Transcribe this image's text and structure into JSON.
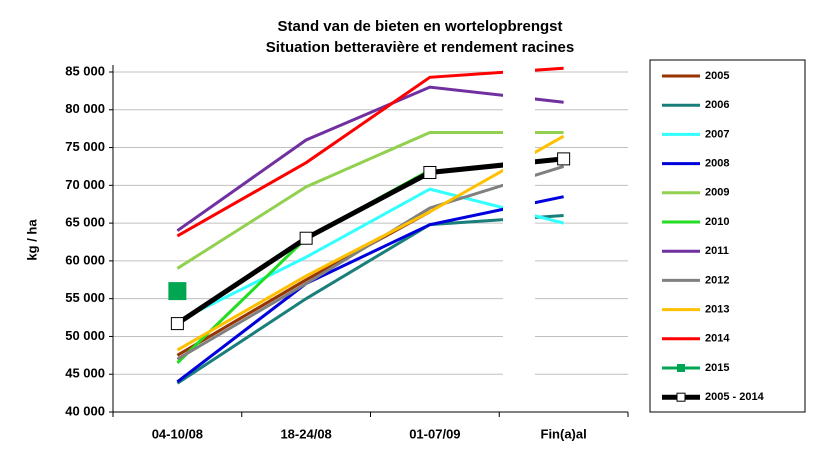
{
  "chart_data": {
    "type": "line",
    "title": "Stand van de bieten en wortelopbrengst",
    "subtitle": "Situation betteravière et rendement racines",
    "y_label": "kg / ha",
    "categories": [
      "04-10/08",
      "18-24/08",
      "01-07/09",
      "Fin(a)al"
    ],
    "ylim": [
      40000,
      85000
    ],
    "yticks": [
      {
        "value": 40000,
        "label": "40 000"
      },
      {
        "value": 45000,
        "label": "45 000"
      },
      {
        "value": 50000,
        "label": "50 000"
      },
      {
        "value": 55000,
        "label": "55 000"
      },
      {
        "value": 60000,
        "label": "60 000"
      },
      {
        "value": 65000,
        "label": "65 000"
      },
      {
        "value": 70000,
        "label": "70 000"
      },
      {
        "value": 75000,
        "label": "75 000"
      },
      {
        "value": 80000,
        "label": "80 000"
      },
      {
        "value": 85000,
        "label": "85 000"
      }
    ],
    "grid": true,
    "legend": "right",
    "series": [
      {
        "name": "2005",
        "color": "#993300",
        "values": [
          47500,
          57500,
          66500,
          null
        ]
      },
      {
        "name": "2006",
        "color": "#1a7f7a",
        "values": [
          43800,
          55000,
          64800,
          66000
        ]
      },
      {
        "name": "2007",
        "color": "#33ffff",
        "values": [
          52000,
          60500,
          69500,
          65000
        ]
      },
      {
        "name": "2008",
        "color": "#0000dd",
        "values": [
          44000,
          57000,
          64800,
          68500
        ]
      },
      {
        "name": "2009",
        "color": "#92d050",
        "values": [
          59000,
          69800,
          77000,
          77000
        ]
      },
      {
        "name": "2010",
        "color": "#22dd22",
        "values": [
          46500,
          63000,
          72000,
          null
        ]
      },
      {
        "name": "2011",
        "color": "#7030a0",
        "values": [
          64000,
          76000,
          83000,
          81000
        ]
      },
      {
        "name": "2012",
        "color": "#808080",
        "values": [
          47000,
          57000,
          67000,
          72500
        ]
      },
      {
        "name": "2013",
        "color": "#ffc000",
        "values": [
          48200,
          58000,
          66500,
          76500
        ]
      },
      {
        "name": "2014",
        "color": "#ff0000",
        "values": [
          63300,
          73000,
          84300,
          85500
        ]
      },
      {
        "name": "2015",
        "color": "#00a651",
        "values": [
          56000,
          null,
          null,
          null
        ],
        "marker": "square"
      },
      {
        "name": "2005 - 2014",
        "color": "#000000",
        "values": [
          51700,
          63000,
          71700,
          73500
        ],
        "marker": "open-square"
      }
    ]
  }
}
